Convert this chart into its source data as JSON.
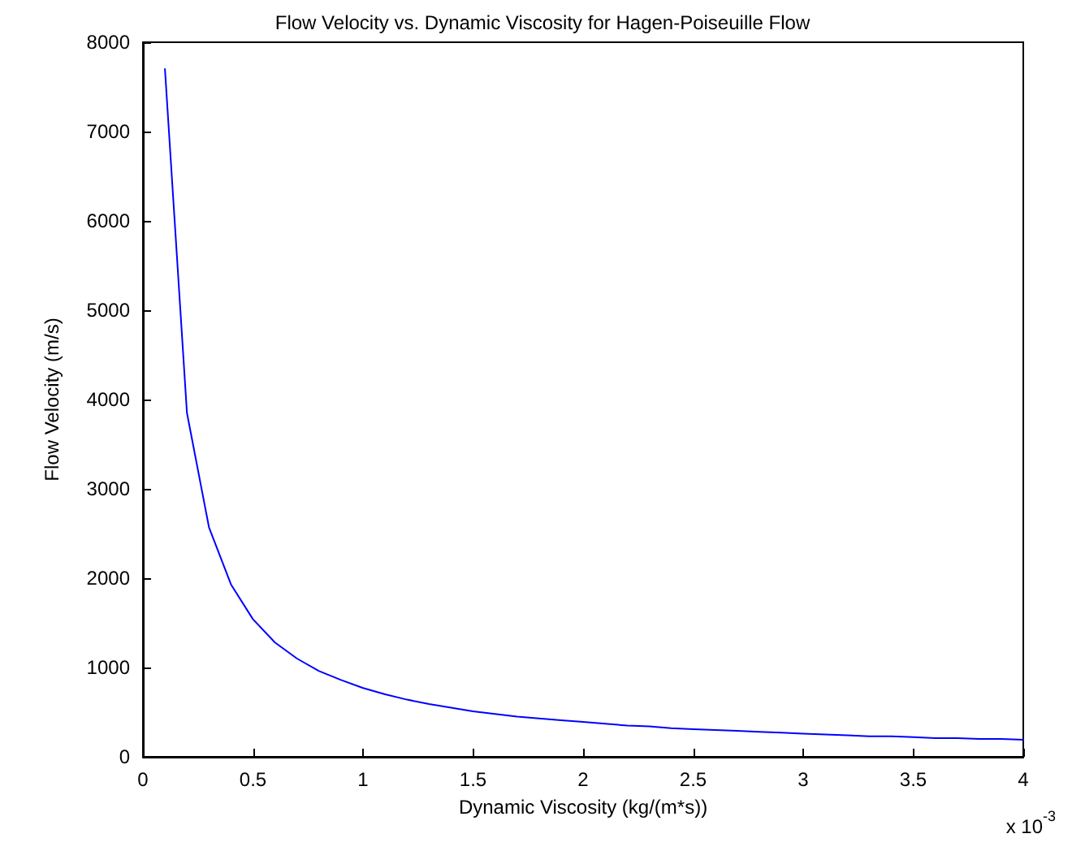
{
  "chart_data": {
    "type": "line",
    "title": "Flow Velocity vs. Dynamic Viscosity for Hagen-Poiseuille Flow",
    "xlabel": "Dynamic Viscosity (kg/(m*s))",
    "ylabel": "Flow Velocity (m/s)",
    "annotations": [
      "x 10$^{-3}$"
    ],
    "x": [
      0.1,
      0.2,
      0.3,
      0.4,
      0.5,
      0.6,
      0.7,
      0.8,
      0.9,
      1.0,
      1.1,
      1.2,
      1.3,
      1.4,
      1.5,
      1.6,
      1.7,
      1.8,
      1.9,
      2.0,
      2.1,
      2.2,
      2.3,
      2.4,
      2.5,
      2.6,
      2.7,
      2.8,
      2.9,
      3.0,
      3.1,
      3.2,
      3.3,
      3.4,
      3.5,
      3.6,
      3.7,
      3.8,
      3.9,
      4.0
    ],
    "series": [
      {
        "color": "#0000ff",
        "values": [
          7700,
          3850,
          2570,
          1930,
          1540,
          1280,
          1100,
          960,
          860,
          770,
          700,
          640,
          590,
          550,
          510,
          480,
          450,
          430,
          410,
          390,
          370,
          350,
          340,
          320,
          310,
          300,
          290,
          280,
          270,
          260,
          250,
          240,
          230,
          230,
          220,
          210,
          210,
          200,
          200,
          190
        ]
      }
    ],
    "xlim": [
      0,
      4
    ],
    "xticks": [
      0,
      0.5,
      1,
      1.5,
      2,
      2.5,
      3,
      3.5,
      4
    ],
    "ylim": [
      0,
      8000
    ],
    "yticks": [
      0,
      1000,
      2000,
      3000,
      4000,
      5000,
      6000,
      7000,
      8000
    ],
    "grid": false,
    "marker": "none",
    "line_style": "solid"
  }
}
